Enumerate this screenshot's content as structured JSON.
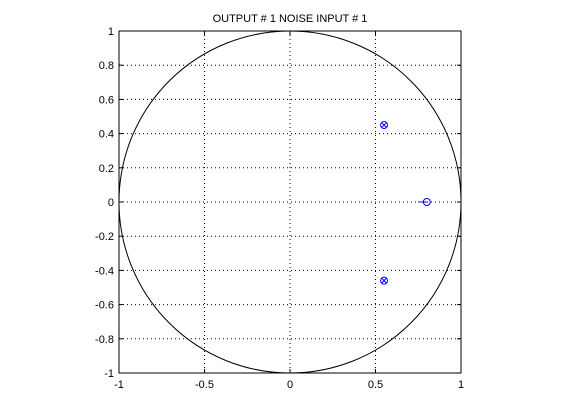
{
  "chart_data": {
    "type": "scatter",
    "title": "OUTPUT # 1  NOISE INPUT # 1",
    "xlabel": "",
    "ylabel": "",
    "xlim": [
      -1,
      1
    ],
    "ylim": [
      -1,
      1
    ],
    "x_ticks": [
      -1,
      -0.5,
      0,
      0.5,
      1
    ],
    "x_tick_labels": [
      "-1",
      "-0.5",
      "0",
      "0.5",
      "1"
    ],
    "y_ticks": [
      -1,
      -0.8,
      -0.6,
      -0.4,
      -0.2,
      0,
      0.2,
      0.4,
      0.6,
      0.8,
      1
    ],
    "y_tick_labels": [
      "-1",
      "-0.8",
      "-0.6",
      "-0.4",
      "-0.2",
      "0",
      "0.2",
      "0.4",
      "0.6",
      "0.8",
      "1"
    ],
    "grid": "dotted",
    "unit_circle": true,
    "marker_color": "#0000ff",
    "series": [
      {
        "marker": "circle-x",
        "points": [
          {
            "x": 0.55,
            "y": 0.45
          },
          {
            "x": 0.55,
            "y": -0.46
          }
        ]
      },
      {
        "marker": "circle",
        "points": [
          {
            "x": 0.8,
            "y": 0.0
          }
        ]
      }
    ],
    "segments": [
      {
        "x1": 0.75,
        "y1": 0.0,
        "x2": 0.8,
        "y2": 0.0
      }
    ]
  }
}
